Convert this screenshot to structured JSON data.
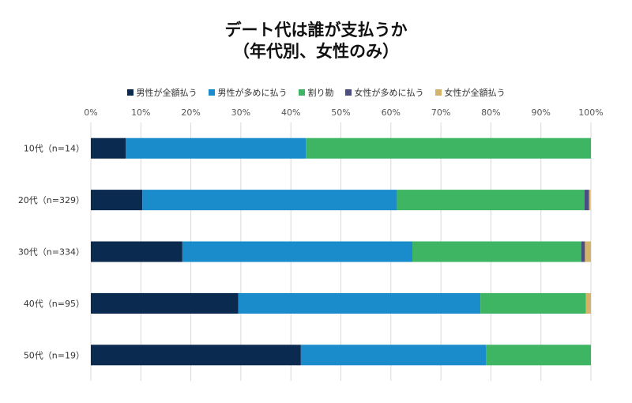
{
  "chart_data": {
    "type": "bar",
    "orientation": "horizontal",
    "stacked": "percent",
    "title": "デート代は誰が支払うか",
    "subtitle": "（年代別、女性のみ）",
    "categories": [
      "10代（n=14）",
      "20代（n=329）",
      "30代（n=334）",
      "40代（n=95）",
      "50代（n=19）"
    ],
    "series": [
      {
        "name": "男性が全額払う",
        "color": "#0b2a4f",
        "values": [
          7,
          10.3,
          18.3,
          29.5,
          42
        ]
      },
      {
        "name": "男性が多めに払う",
        "color": "#1a8ccc",
        "values": [
          36,
          50.9,
          46,
          48.4,
          37
        ]
      },
      {
        "name": "割り勘",
        "color": "#3eb563",
        "values": [
          57,
          37.5,
          33.8,
          21.1,
          21
        ]
      },
      {
        "name": "女性が多めに払う",
        "color": "#4a4f80",
        "values": [
          0,
          0.9,
          0.7,
          0,
          0
        ]
      },
      {
        "name": "女性が全額払う",
        "color": "#d4b46a",
        "values": [
          0,
          0.3,
          1.2,
          1.0,
          0
        ]
      }
    ],
    "xlim": [
      0,
      100
    ],
    "xticks": [
      "0%",
      "10%",
      "20%",
      "30%",
      "40%",
      "50%",
      "60%",
      "70%",
      "80%",
      "90%",
      "100%"
    ],
    "grid": true,
    "legend_position": "top"
  }
}
